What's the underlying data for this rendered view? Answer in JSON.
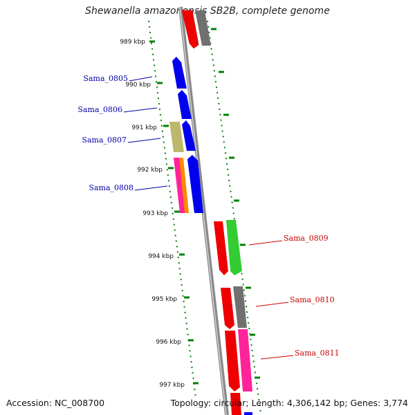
{
  "title": "Shewanella amazonensis SB2B, complete genome",
  "footer": {
    "accession": "Accession: NC_008700",
    "topology": "Topology: circular; Length: 4,306,142 bp; Genes: 3,774"
  },
  "kbp_labels": [
    "989 kbp",
    "990 kbp",
    "991 kbp",
    "992 kbp",
    "993 kbp",
    "994 kbp",
    "995 kbp",
    "996 kbp",
    "997 kbp"
  ],
  "gene_labels": [
    {
      "text": "Sama_0805",
      "side": "left",
      "color": "#0000aa"
    },
    {
      "text": "Sama_0806",
      "side": "left",
      "color": "#0000aa"
    },
    {
      "text": "Sama_0807",
      "side": "left",
      "color": "#0000aa"
    },
    {
      "text": "Sama_0808",
      "side": "left",
      "color": "#0000aa"
    },
    {
      "text": "Sama_0809",
      "side": "right",
      "color": "#cc0000"
    },
    {
      "text": "Sama_0810",
      "side": "right",
      "color": "#cc0000"
    },
    {
      "text": "Sama_0811",
      "side": "right",
      "color": "#cc0000"
    }
  ],
  "colors": {
    "blue": "#0000ee",
    "red": "#ee0000",
    "gray": "#707070",
    "khaki": "#bdb76b",
    "green": "#33cc33",
    "pink": "#ff2299",
    "orange": "#ff8800",
    "tick": "#008000",
    "backbone": "#888888"
  }
}
